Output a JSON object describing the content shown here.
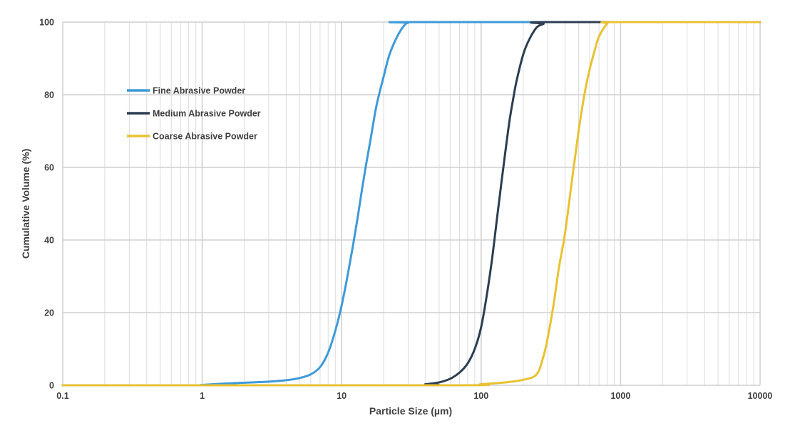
{
  "chart_data": {
    "type": "line",
    "xlabel": "Particle Size (µm)",
    "ylabel": "Cumulative Volume (%)",
    "x_scale": "log",
    "xlim": [
      0.1,
      10000
    ],
    "ylim": [
      0,
      100
    ],
    "x_ticks": [
      {
        "value": 0.1,
        "label": "0.1"
      },
      {
        "value": 1,
        "label": "1"
      },
      {
        "value": 10,
        "label": "10"
      },
      {
        "value": 100,
        "label": "100"
      },
      {
        "value": 1000,
        "label": "1000"
      },
      {
        "value": 10000,
        "label": "10000"
      }
    ],
    "y_ticks": [
      {
        "value": 0,
        "label": "0"
      },
      {
        "value": 20,
        "label": "20"
      },
      {
        "value": 40,
        "label": "40"
      },
      {
        "value": 60,
        "label": "60"
      },
      {
        "value": 80,
        "label": "80"
      },
      {
        "value": 100,
        "label": "100"
      }
    ],
    "grid": true,
    "legend_position": "top-left",
    "series": [
      {
        "name": "Fine Abrasive Powder",
        "color": "#3e9ad8",
        "points": [
          [
            0.1,
            0
          ],
          [
            0.8,
            0
          ],
          [
            1,
            0.1
          ],
          [
            1.5,
            0.5
          ],
          [
            2,
            0.7
          ],
          [
            3,
            1
          ],
          [
            4,
            1.4
          ],
          [
            5,
            2
          ],
          [
            6,
            3
          ],
          [
            7,
            5
          ],
          [
            8,
            9
          ],
          [
            9,
            15
          ],
          [
            10,
            22
          ],
          [
            11,
            30
          ],
          [
            12,
            38
          ],
          [
            13,
            46
          ],
          [
            14,
            54
          ],
          [
            15,
            61
          ],
          [
            16,
            67
          ],
          [
            17,
            73
          ],
          [
            18,
            78
          ],
          [
            20,
            85
          ],
          [
            22,
            91
          ],
          [
            25,
            96
          ],
          [
            28,
            99
          ],
          [
            30,
            99.8
          ],
          [
            35,
            100
          ],
          [
            10000,
            100
          ]
        ]
      },
      {
        "name": "Medium Abrasive Powder",
        "color": "#2c3e50",
        "points": [
          [
            0.1,
            0
          ],
          [
            30,
            0
          ],
          [
            40,
            0.3
          ],
          [
            50,
            0.8
          ],
          [
            60,
            1.8
          ],
          [
            70,
            3.5
          ],
          [
            80,
            6
          ],
          [
            90,
            10
          ],
          [
            100,
            16
          ],
          [
            110,
            25
          ],
          [
            120,
            35
          ],
          [
            130,
            46
          ],
          [
            140,
            56
          ],
          [
            150,
            65
          ],
          [
            160,
            73
          ],
          [
            170,
            79
          ],
          [
            180,
            84
          ],
          [
            200,
            91
          ],
          [
            220,
            95
          ],
          [
            250,
            98.5
          ],
          [
            280,
            99.5
          ],
          [
            300,
            100
          ],
          [
            10000,
            100
          ]
        ]
      },
      {
        "name": "Coarse Abrasive Powder",
        "color": "#e8c234",
        "points": [
          [
            0.1,
            0
          ],
          [
            60,
            0
          ],
          [
            100,
            0.3
          ],
          [
            150,
            0.8
          ],
          [
            200,
            1.5
          ],
          [
            250,
            3
          ],
          [
            280,
            8
          ],
          [
            300,
            13
          ],
          [
            330,
            22
          ],
          [
            360,
            32
          ],
          [
            400,
            42
          ],
          [
            450,
            57
          ],
          [
            500,
            70
          ],
          [
            550,
            80
          ],
          [
            600,
            87
          ],
          [
            650,
            92
          ],
          [
            700,
            96
          ],
          [
            800,
            99.5
          ],
          [
            900,
            100
          ],
          [
            10000,
            100
          ]
        ]
      }
    ]
  }
}
